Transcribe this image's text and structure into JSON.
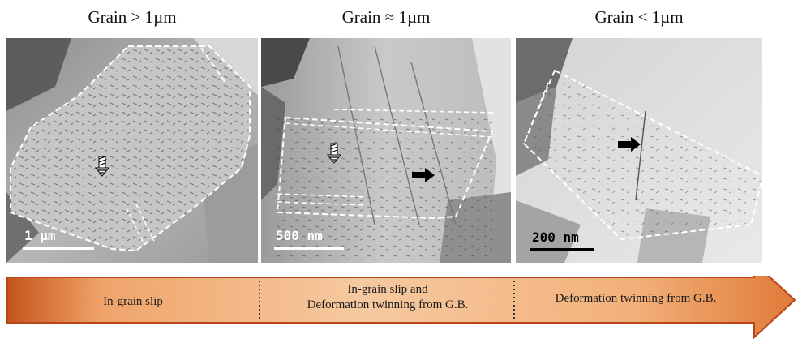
{
  "headings": [
    {
      "text": "Grain > 1µm"
    },
    {
      "text": "Grain ≈ 1µm"
    },
    {
      "text": "Grain < 1µm"
    }
  ],
  "scale_bars": [
    {
      "text": "1 µm",
      "color": "#ffffff"
    },
    {
      "text": "500 nm",
      "color": "#ffffff"
    },
    {
      "text": "200 nm",
      "color": "#000000"
    }
  ],
  "stages": [
    {
      "text": "In-grain slip"
    },
    {
      "line1": "In-grain slip and",
      "line2": "Deformation twinning from G.B."
    },
    {
      "text": "Deformation twinning from G.B."
    }
  ],
  "colors": {
    "arrow_light": "#f6c9a0",
    "arrow_mid": "#f0a46a",
    "arrow_dark": "#c5531b",
    "arrow_outline": "#b9461a",
    "divider": "#333333"
  }
}
